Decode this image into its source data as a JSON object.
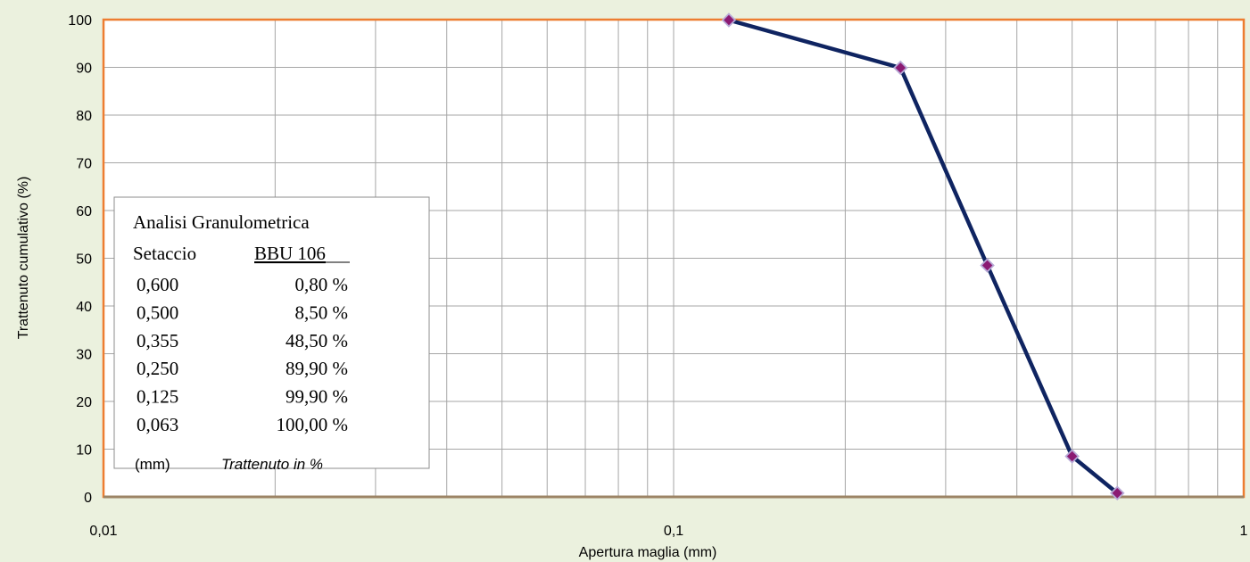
{
  "chart_data": {
    "type": "line",
    "x_scale": "log",
    "xlim": [
      0.01,
      1
    ],
    "ylim": [
      0,
      100
    ],
    "x_ticks": [
      "0,01",
      "0,1",
      "1"
    ],
    "y_ticks": [
      "0",
      "10",
      "20",
      "30",
      "40",
      "50",
      "60",
      "70",
      "80",
      "90",
      "100"
    ],
    "xlabel": "Apertura maglia  (mm)",
    "ylabel": "Trattenuto cumulativo (%)",
    "grid": true,
    "series": [
      {
        "x": [
          0.125,
          0.25,
          0.355,
          0.5,
          0.6
        ],
        "y": [
          99.9,
          89.9,
          48.5,
          8.5,
          0.8
        ],
        "color": "#0f2461",
        "marker_color": "#8b1a73"
      }
    ],
    "colors": {
      "background": "#ebf1de",
      "plot_background": "#ffffff",
      "grid": "#a6a6a6",
      "plot_border": "#ed7d31"
    },
    "legend_box": {
      "title": "Analisi Granulometrica",
      "col1_header": "Setaccio",
      "col2_header": "BBU 106",
      "rows": [
        {
          "sieve": "0,600",
          "value": "0,80 %"
        },
        {
          "sieve": "0,500",
          "value": "8,50 %"
        },
        {
          "sieve": "0,355",
          "value": "48,50 %"
        },
        {
          "sieve": "0,250",
          "value": "89,90 %"
        },
        {
          "sieve": "0,125",
          "value": "99,90 %"
        },
        {
          "sieve": "0,063",
          "value": "100,00 %"
        }
      ],
      "footer_col1": "(mm)",
      "footer_col2": "Trattenuto in %"
    }
  }
}
